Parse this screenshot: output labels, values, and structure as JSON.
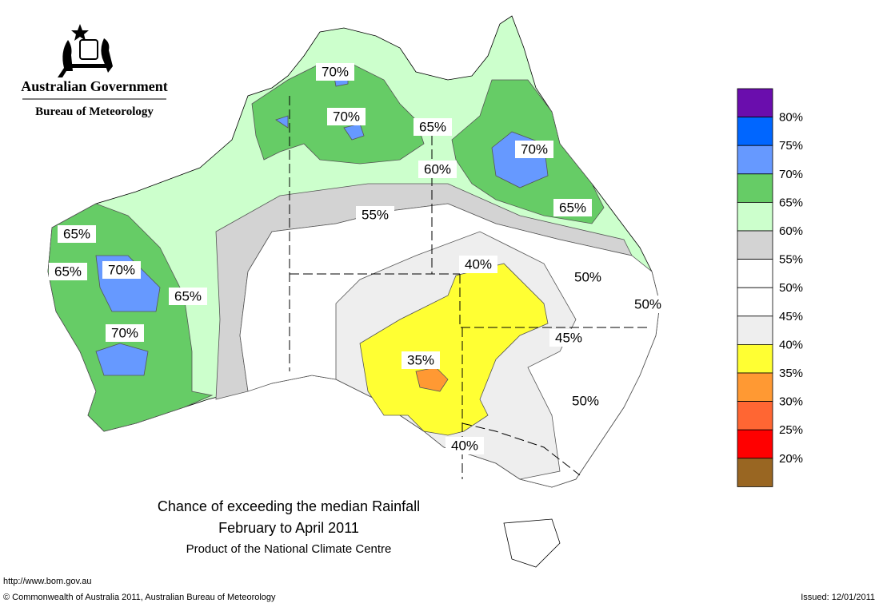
{
  "header": {
    "government": "Australian Government",
    "agency": "Bureau of Meteorology"
  },
  "map": {
    "labels": [
      "70%",
      "70%",
      "65%",
      "60%",
      "70%",
      "65%",
      "55%",
      "65%",
      "65%",
      "70%",
      "65%",
      "70%",
      "40%",
      "50%",
      "50%",
      "45%",
      "35%",
      "50%",
      "40%"
    ]
  },
  "legend": {
    "colors": [
      "#6a0dad",
      "#0066ff",
      "#6699ff",
      "#66cc66",
      "#ccffcc",
      "#d3d3d3",
      "#ffffff",
      "#ffffff",
      "#eeeeee",
      "#ffff33",
      "#ff9933",
      "#ff6633",
      "#ff0000",
      "#996622"
    ],
    "labels": [
      "80%",
      "75%",
      "70%",
      "65%",
      "60%",
      "55%",
      "50%",
      "45%",
      "40%",
      "35%",
      "30%",
      "25%",
      "20%"
    ]
  },
  "title": {
    "line1": "Chance of exceeding the median Rainfall",
    "line2": "February to April 2011",
    "line3": "Product of the National Climate Centre"
  },
  "footer": {
    "url": "http://www.bom.gov.au",
    "copyright": "© Commonwealth of Australia 2011, Australian Bureau of Meteorology",
    "issued": "Issued: 12/01/2011"
  }
}
